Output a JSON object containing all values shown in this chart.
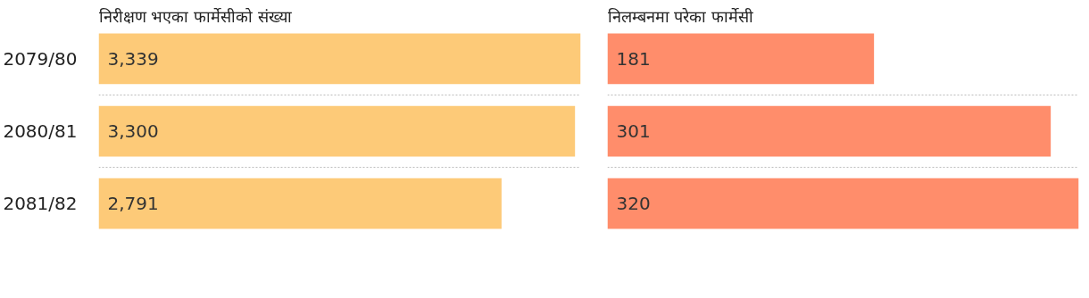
{
  "chart_data": [
    {
      "type": "bar",
      "orientation": "horizontal",
      "title": "निरीक्षण भएका फार्मेसीको संख्या",
      "categories": [
        "2079/80",
        "2080/81",
        "2081/82"
      ],
      "values": [
        3339,
        3300,
        2791
      ],
      "value_labels": [
        "3,339",
        "3,300",
        "2,791"
      ],
      "color": "#fdca78",
      "grid": "y"
    },
    {
      "type": "bar",
      "orientation": "horizontal",
      "title": "निलम्बनमा परेका फार्मेसी",
      "categories": [
        "2079/80",
        "2080/81",
        "2081/82"
      ],
      "values": [
        181,
        301,
        320
      ],
      "data_labels": true,
      "color": "#ff8d6b",
      "grid": "y",
      "tick_labels": false
    }
  ]
}
